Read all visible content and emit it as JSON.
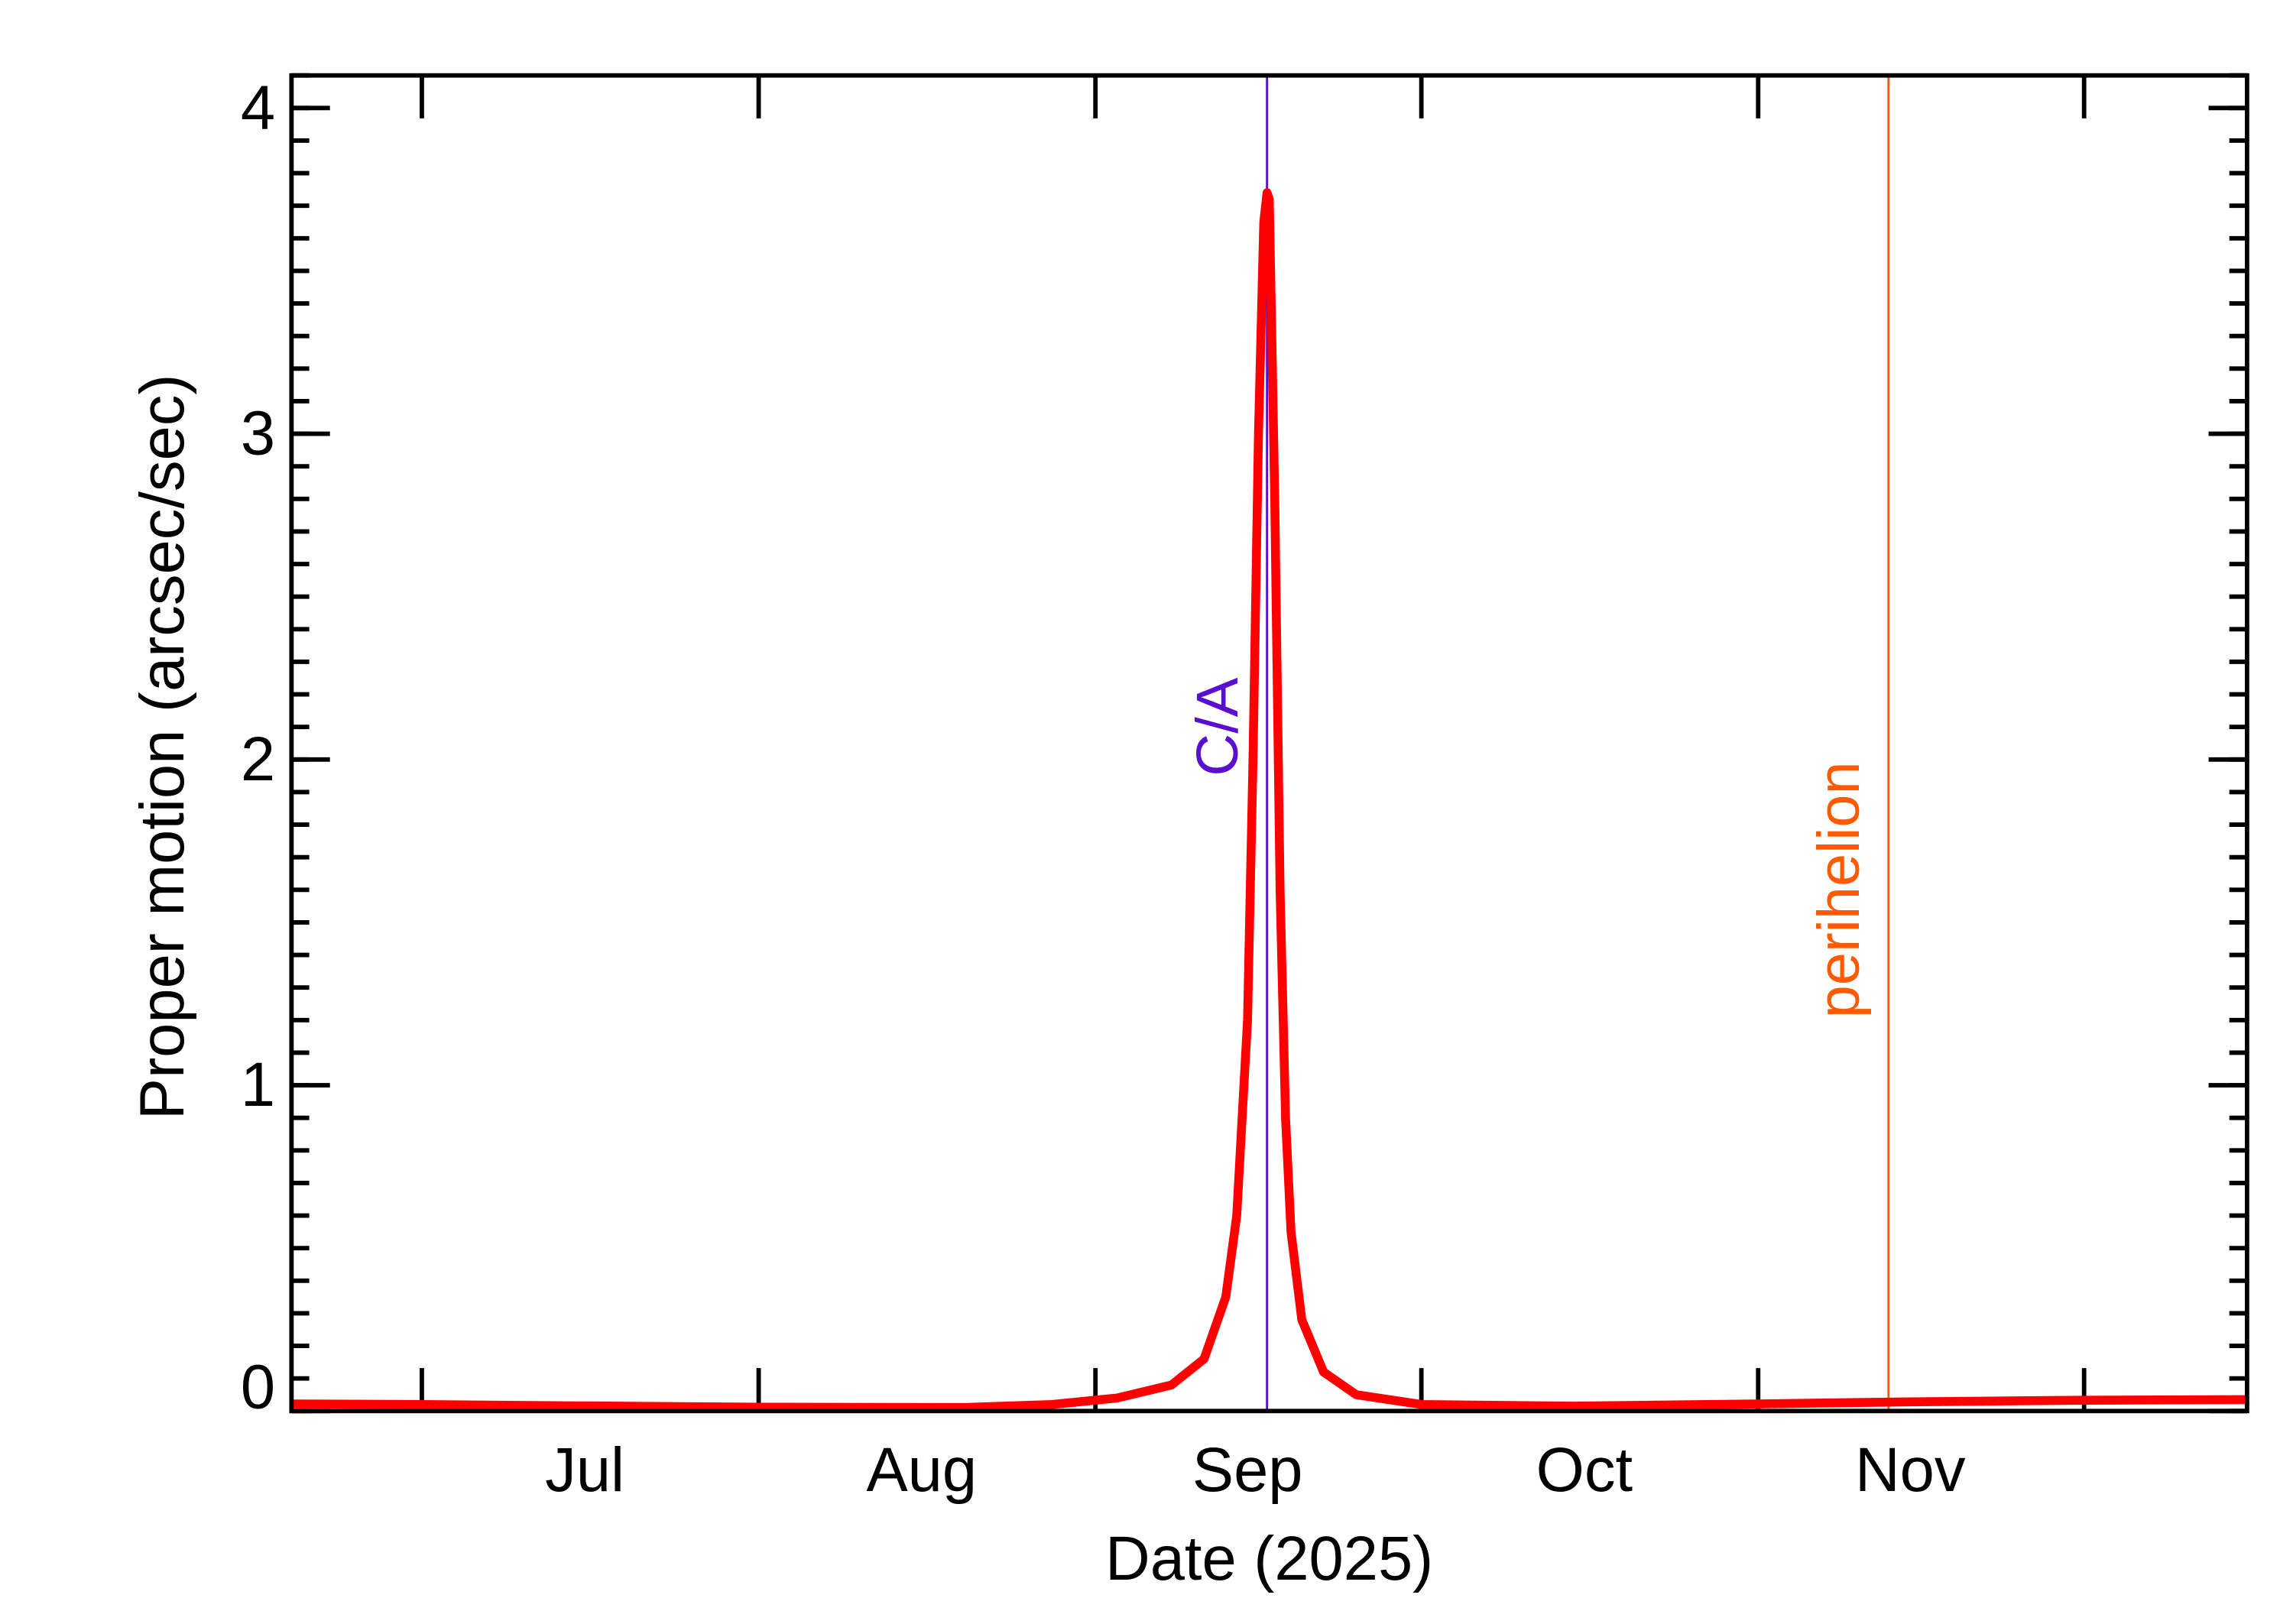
{
  "chart_data": {
    "type": "line",
    "xlabel": "Date (2025)",
    "ylabel": "Proper motion (arcsec/sec)",
    "xlim": [
      "2025-06-19",
      "2025-12-16"
    ],
    "ylim": [
      0,
      4.1
    ],
    "yticks": [
      0,
      1,
      2,
      3,
      4
    ],
    "ytick_labels": [
      "0",
      "1",
      "2",
      "3",
      "4"
    ],
    "y_minor_step": 0.1,
    "x_major_ticks": [
      "2025-07-01",
      "2025-08-01",
      "2025-09-01",
      "2025-10-01",
      "2025-11-01",
      "2025-12-01"
    ],
    "x_labels": [
      {
        "date": "2025-07-16",
        "text": "Jul"
      },
      {
        "date": "2025-08-16",
        "text": "Aug"
      },
      {
        "date": "2025-09-15",
        "text": "Sep"
      },
      {
        "date": "2025-10-16",
        "text": "Oct"
      },
      {
        "date": "2025-11-15",
        "text": "Nov"
      }
    ],
    "grid": false,
    "series": [
      {
        "color": "#ff0000",
        "points": [
          [
            "2025-06-19",
            0.022
          ],
          [
            "2025-07-01",
            0.02
          ],
          [
            "2025-07-15",
            0.016
          ],
          [
            "2025-08-01",
            0.012
          ],
          [
            "2025-08-20",
            0.011
          ],
          [
            "2025-08-28",
            0.02
          ],
          [
            "2025-09-03",
            0.04
          ],
          [
            "2025-09-08",
            0.08
          ],
          [
            "2025-09-11",
            0.16
          ],
          [
            "2025-09-13",
            0.35
          ],
          [
            "2025-09-14",
            0.6
          ],
          [
            "2025-09-15",
            1.2
          ],
          [
            "2025-09-15T12:00",
            2.0
          ],
          [
            "2025-09-16",
            3.0
          ],
          [
            "2025-09-16T12:00",
            3.65
          ],
          [
            "2025-09-16T19:00",
            3.74
          ],
          [
            "2025-09-17",
            3.72
          ],
          [
            "2025-09-17T12:00",
            2.8
          ],
          [
            "2025-09-18",
            1.6
          ],
          [
            "2025-09-18T12:00",
            0.9
          ],
          [
            "2025-09-19",
            0.55
          ],
          [
            "2025-09-20",
            0.28
          ],
          [
            "2025-09-22",
            0.12
          ],
          [
            "2025-09-25",
            0.05
          ],
          [
            "2025-10-01",
            0.02
          ],
          [
            "2025-10-15",
            0.015
          ],
          [
            "2025-11-01",
            0.022
          ],
          [
            "2025-11-15",
            0.028
          ],
          [
            "2025-12-01",
            0.033
          ],
          [
            "2025-12-16",
            0.035
          ]
        ]
      }
    ],
    "annotations": [
      {
        "text": "C/A",
        "date": "2025-09-16T19:00",
        "color": "#5a0fd0",
        "label_y": 2.1
      },
      {
        "text": "perihelion",
        "date": "2025-11-13",
        "color": "#ff5a00",
        "label_y": 1.6
      }
    ]
  }
}
